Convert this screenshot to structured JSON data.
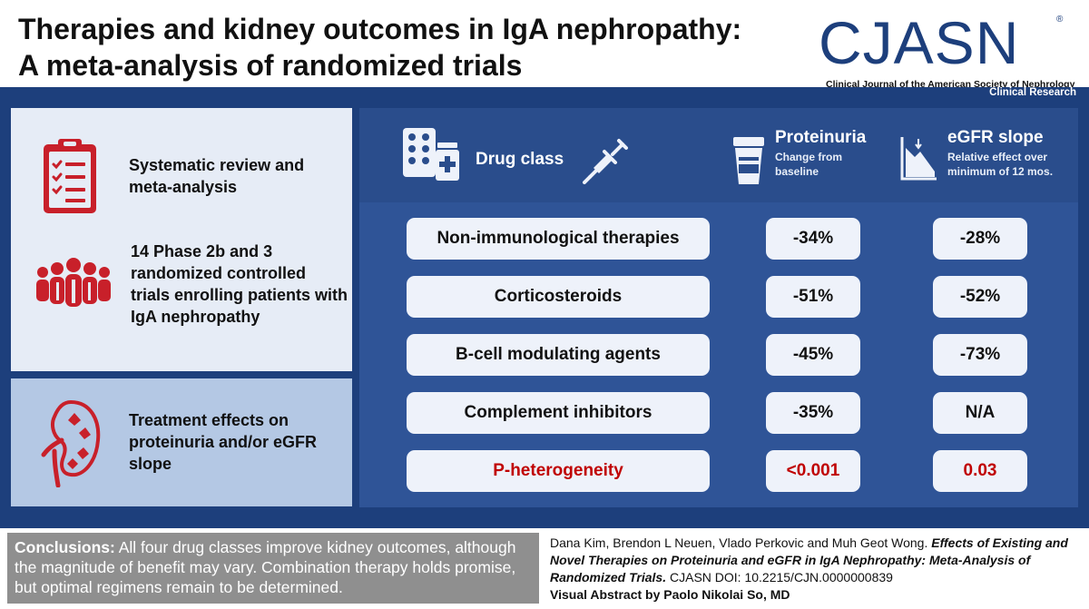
{
  "title": {
    "line1": "Therapies and kidney outcomes in IgA nephropathy:",
    "line2": "A meta-analysis of randomized trials"
  },
  "logo": {
    "text": "CJASN",
    "registered": "®",
    "subtitle": "Clinical Journal of the American Society of Nephrology"
  },
  "section_tag": "Clinical Research",
  "left_panel": {
    "items": [
      {
        "icon": "clipboard-checklist-icon",
        "text": "Systematic review and meta-analysis"
      },
      {
        "icon": "people-group-icon",
        "text": "14 Phase 2b and 3 randomized controlled trials enrolling patients with IgA nephropathy"
      },
      {
        "icon": "kidney-icon",
        "text": "Treatment effects on proteinuria and/or eGFR slope"
      }
    ]
  },
  "table": {
    "headers": {
      "drug_class": "Drug class",
      "proteinuria": "Proteinuria",
      "proteinuria_sub": "Change from baseline",
      "egfr": "eGFR slope",
      "egfr_sub": "Relative effect over minimum of 12 mos."
    },
    "rows": [
      {
        "label": "Non-immunological therapies",
        "proteinuria": "-34%",
        "egfr": "-28%"
      },
      {
        "label": "Corticosteroids",
        "proteinuria": "-51%",
        "egfr": "-52%"
      },
      {
        "label": "B-cell modulating agents",
        "proteinuria": "-45%",
        "egfr": "-73%"
      },
      {
        "label": "Complement inhibitors",
        "proteinuria": "-35%",
        "egfr": "N/A"
      },
      {
        "label": "P-heterogeneity",
        "proteinuria": "<0.001",
        "egfr": "0.03"
      }
    ]
  },
  "conclusion": {
    "label": "Conclusions:",
    "text": " All four drug classes improve kidney outcomes, although the magnitude of benefit may vary. Combination therapy holds promise, but optimal regimens remain to be determined."
  },
  "citation": {
    "authors": "Dana Kim, Brendon L Neuen, Vlado Perkovic and Muh Geot Wong. ",
    "article_title": "Effects of Existing and Novel Therapies on Proteinuria and eGFR in IgA Nephropathy: Meta-Analysis of Randomized Trials.",
    "doi": " CJASN DOI: 10.2215/CJN.0000000839",
    "credit": "Visual Abstract by Paolo Nikolai So, MD"
  },
  "colors": {
    "navy": "#1d3f7c",
    "panel_blue": "#2f5497",
    "accent_red": "#c8202a",
    "pill_bg": "#eef2fa"
  }
}
